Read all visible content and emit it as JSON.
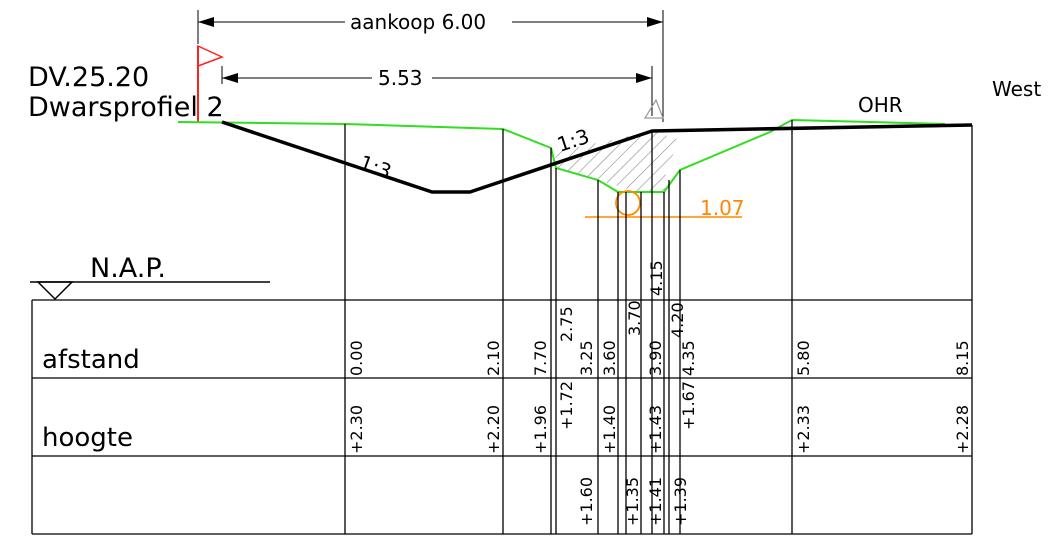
{
  "drawing": {
    "code": "DV.25.20",
    "subtitle": "Dwarsprofiel 2",
    "direction": "West",
    "ohr": "OHR",
    "nap": "N.A.P.",
    "dim_outer": "aankoop 6.00",
    "dim_inner": "5.53",
    "slope_left": "1:3",
    "slope_right": "1:3",
    "depth_marker": "1.07"
  },
  "table": {
    "row_labels": [
      "afstand",
      "hoogte",
      ""
    ],
    "afstand": [
      "0.00",
      "2.10",
      "7.70",
      "2.75",
      "3.25",
      "3.60",
      "3.70",
      "3.90",
      "4.15",
      "4.20",
      "4.35",
      "5.80",
      "8.15"
    ],
    "hoogte": [
      "+2.30",
      "+2.20",
      "+1.96",
      "+1.72",
      "+1.40",
      "+1.43",
      "+1.67",
      "+2.33",
      "+2.28"
    ],
    "extra": [
      "+1.60",
      "+1.35",
      "+1.41",
      "+1.39"
    ]
  },
  "colors": {
    "existing_profile": "#33dd22",
    "design_profile": "#000000",
    "marker": "#ff8800",
    "flag": "#ff2222",
    "hatch": "#888888"
  }
}
